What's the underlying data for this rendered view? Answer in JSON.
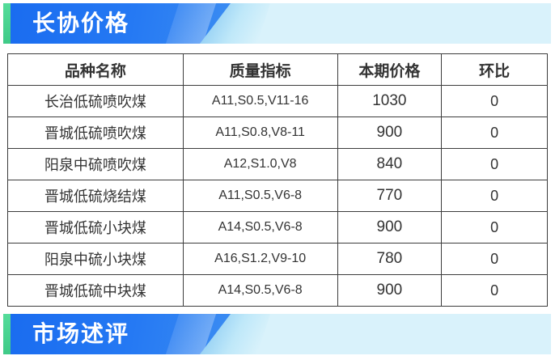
{
  "sections": {
    "price": {
      "title": "长协价格"
    },
    "review": {
      "title": "市场述评"
    }
  },
  "colors": {
    "ribbon_blue": "#1a6cf0",
    "ribbon_blue_light": "#3b8cf2",
    "accent_green": "#4fd693",
    "band_cyan": "#d9f2fb",
    "table_border": "#3c3c3c",
    "text_dark": "#333333"
  },
  "table": {
    "columns": [
      "品种名称",
      "质量指标",
      "本期价格",
      "环比"
    ],
    "rows": [
      {
        "name": "长治低硫喷吹煤",
        "spec": "A11,S0.5,V11-16",
        "price": "1030",
        "mom": "0"
      },
      {
        "name": "晋城低硫喷吹煤",
        "spec": "A11,S0.8,V8-11",
        "price": "900",
        "mom": "0"
      },
      {
        "name": "阳泉中硫喷吹煤",
        "spec": "A12,S1.0,V8",
        "price": "840",
        "mom": "0"
      },
      {
        "name": "晋城低硫烧结煤",
        "spec": "A11,S0.5,V6-8",
        "price": "770",
        "mom": "0"
      },
      {
        "name": "晋城低硫小块煤",
        "spec": "A14,S0.5,V6-8",
        "price": "900",
        "mom": "0"
      },
      {
        "name": "阳泉中硫小块煤",
        "spec": "A16,S1.2,V9-10",
        "price": "780",
        "mom": "0"
      },
      {
        "name": "晋城低硫中块煤",
        "spec": "A14,S0.5,V6-8",
        "price": "900",
        "mom": "0"
      }
    ]
  }
}
